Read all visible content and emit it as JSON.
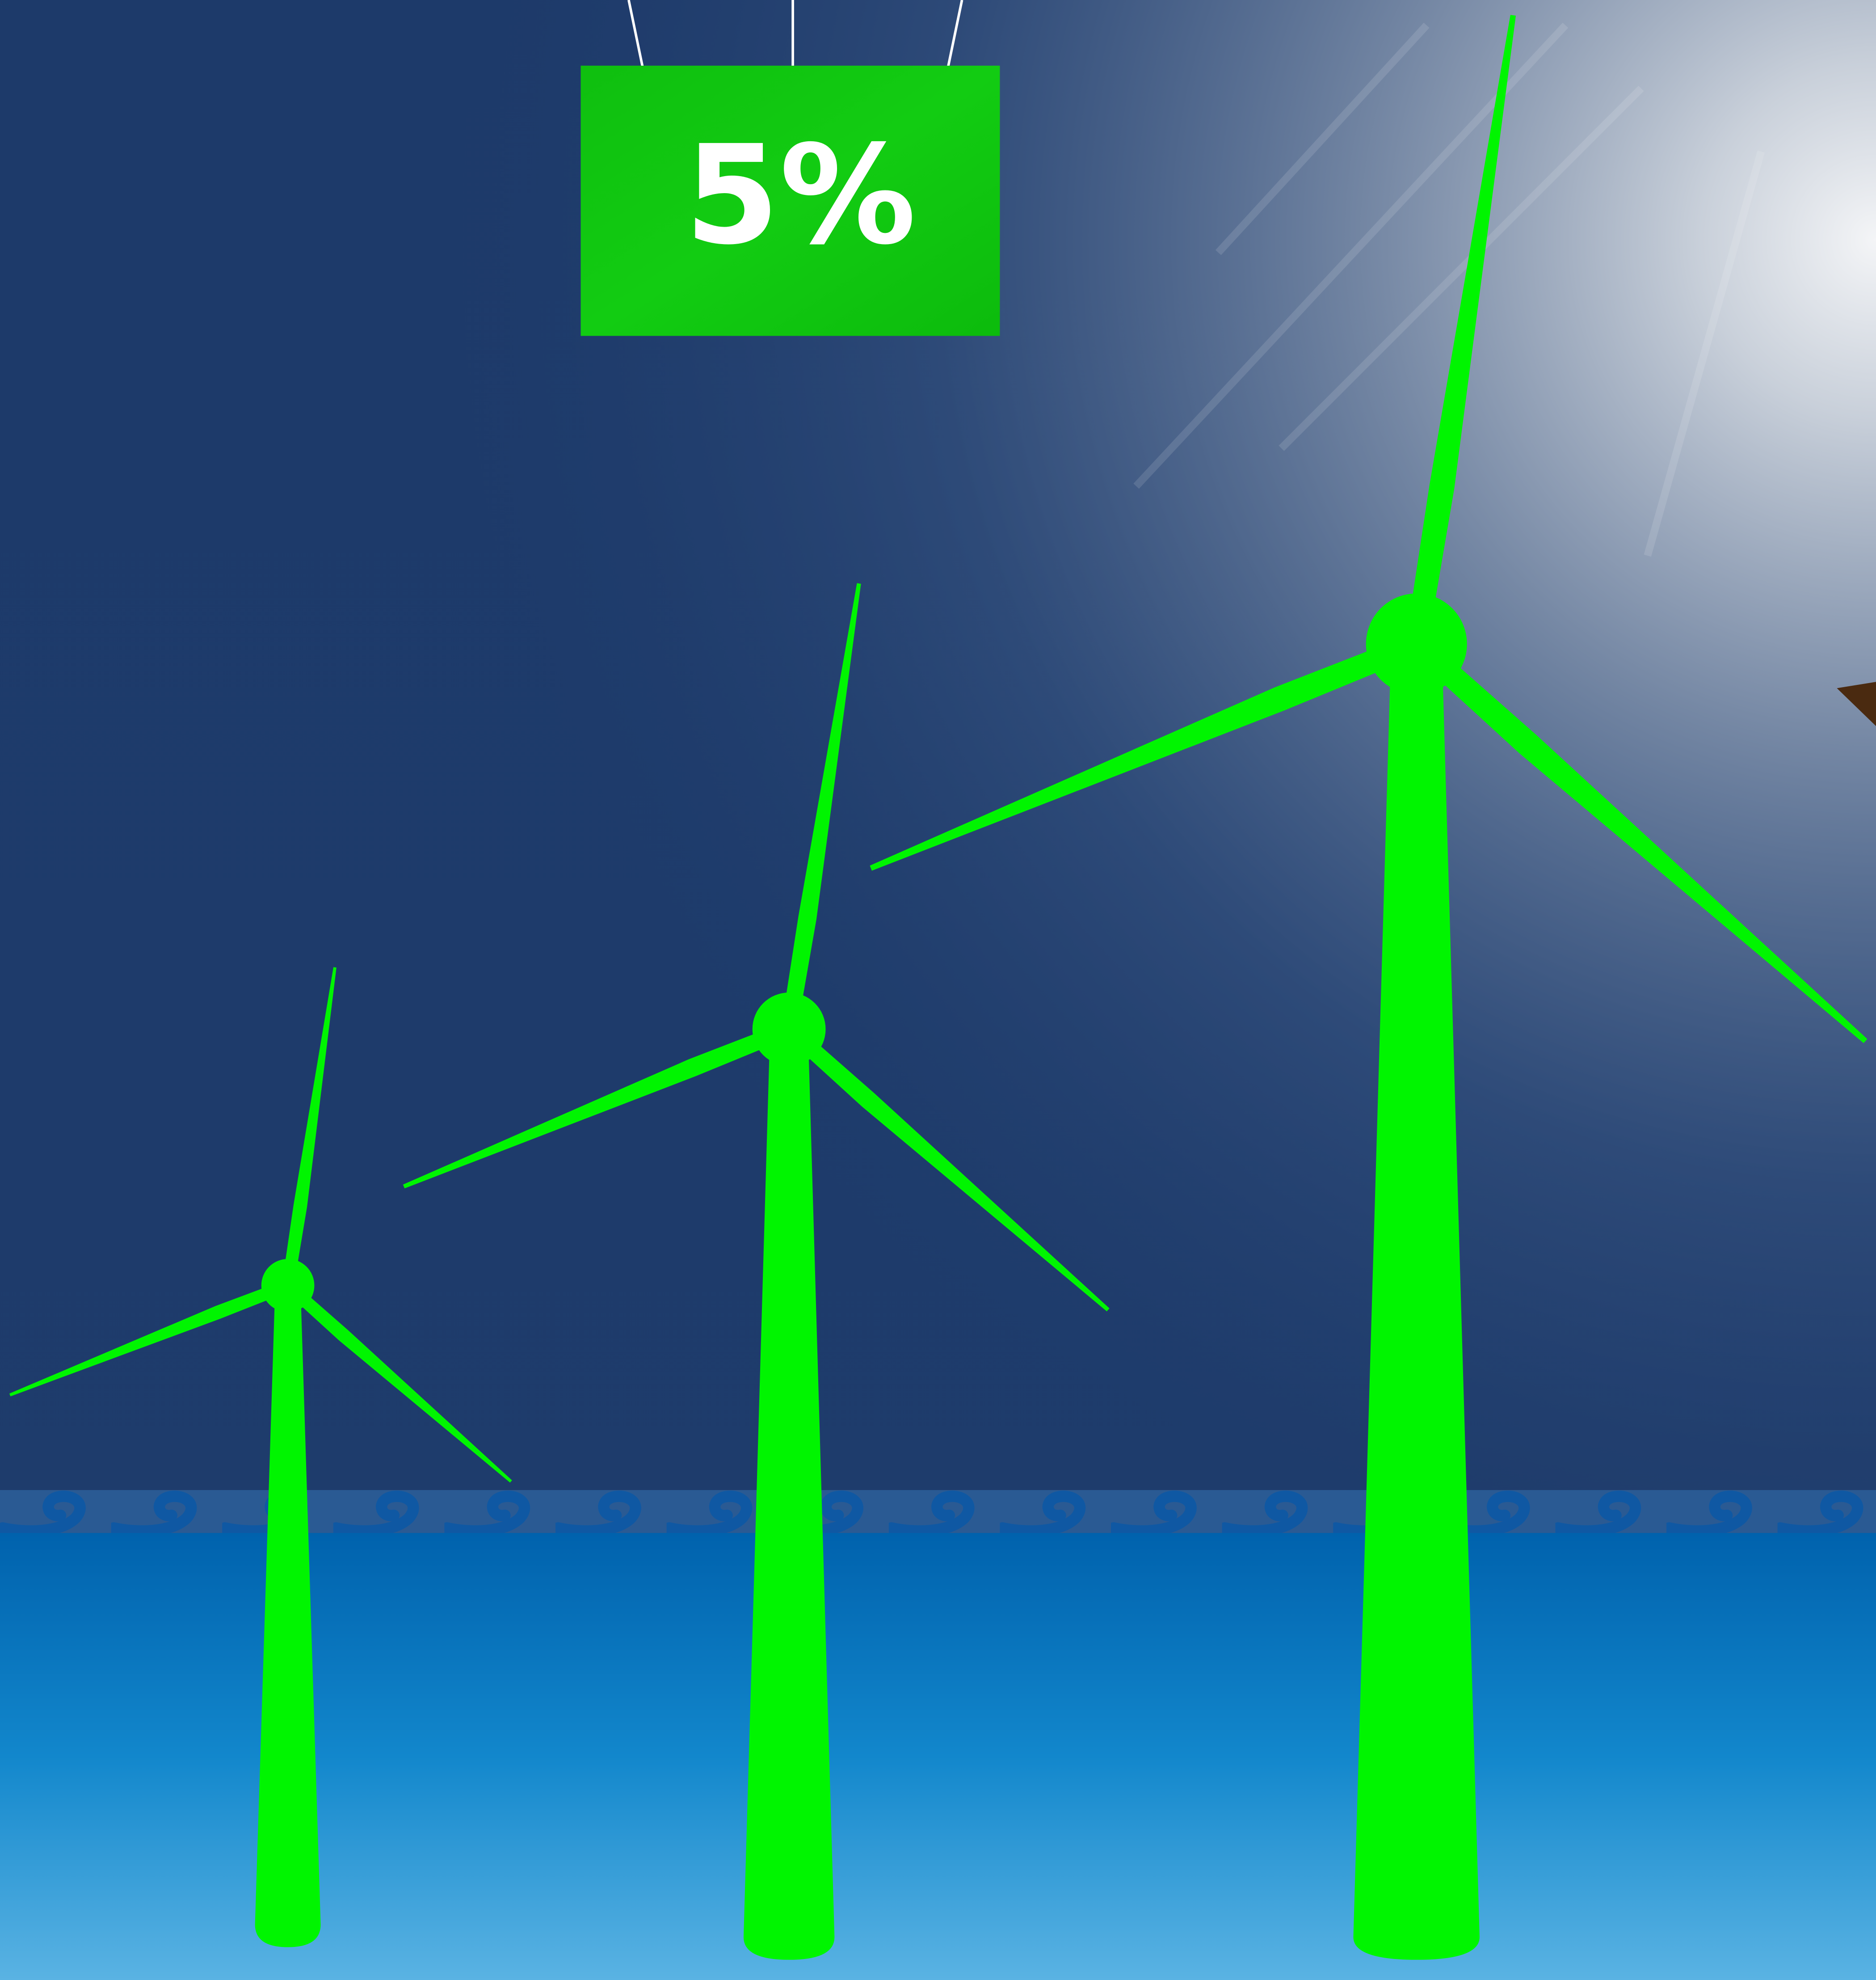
{
  "sign": {
    "label": "5%"
  }
}
